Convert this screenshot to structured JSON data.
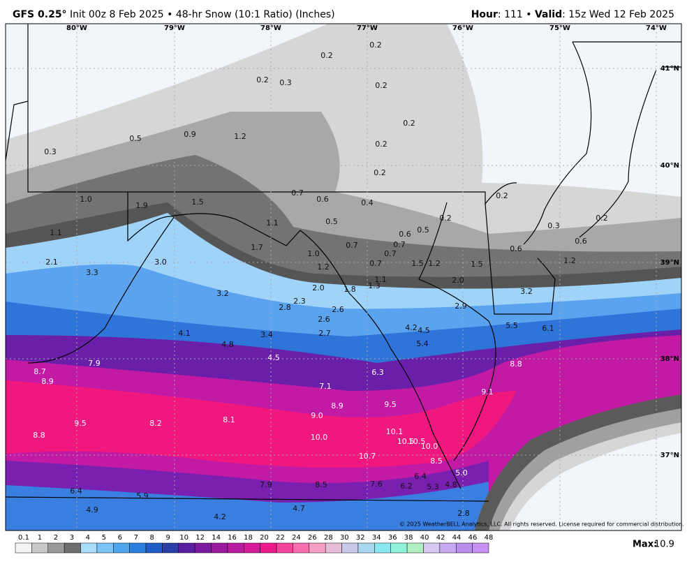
{
  "header": {
    "model": "GFS 0.25°",
    "description": "Init 00z 8 Feb 2025 • 48-hr Snow (10:1 Ratio) (Inches)",
    "hour_label": "Hour",
    "hour": ": 111 •",
    "valid_label": "Valid",
    "valid": ": 15z Wed 12 Feb 2025"
  },
  "map": {
    "longitudes": [
      "80°W",
      "79°W",
      "78°W",
      "77°W",
      "76°W",
      "75°W",
      "74°W"
    ],
    "latitudes": [
      "41°N",
      "40°N",
      "39°N",
      "38°N",
      "37°N"
    ],
    "values": [
      "0.2",
      "0.2",
      "0.2",
      "0.3",
      "0.2",
      "0.2",
      "0.2",
      "0.2",
      "0.3",
      "0.5",
      "0.9",
      "1.2",
      "1.0",
      "1.9",
      "1.5",
      "0.7",
      "0.6",
      "0.4",
      "0.2",
      "0.5",
      "1.1",
      "1.1",
      "0.6",
      "0.5",
      "0.2",
      "0.3",
      "0.2",
      "1.7",
      "0.7",
      "0.7",
      "0.7",
      "0.6",
      "0.6",
      "1.0",
      "2.1",
      "3.0",
      "1.2",
      "0.7",
      "1.5",
      "1.2",
      "1.5",
      "1.2",
      "3.3",
      "1.1",
      "2.0",
      "2.0",
      "1.8",
      "1.3",
      "3.2",
      "3.2",
      "2.3",
      "2.8",
      "2.6",
      "2.9",
      "2.6",
      "4.2",
      "4.5",
      "5.5",
      "6.1",
      "4.1",
      "2.7",
      "3.4",
      "4.8",
      "5.4",
      "4.5",
      "7.9",
      "8.8",
      "8.7",
      "6.3",
      "8.9",
      "7.1",
      "9.1",
      "8.9",
      "9.5",
      "9.0",
      "9.5",
      "8.2",
      "8.1",
      "10.1",
      "8.8",
      "10.0",
      "10.5",
      "10.5",
      "10.0",
      "10.7",
      "8.5",
      "5.0",
      "6.4",
      "7.9",
      "8.5",
      "7.6",
      "6.2",
      "5.3",
      "4.8",
      "6.4",
      "5.9",
      "4.9",
      "4.7",
      "4.2",
      "2.8"
    ]
  },
  "legend": {
    "ticks": [
      0.1,
      1,
      2,
      3,
      4,
      5,
      6,
      7,
      8,
      9,
      10,
      12,
      14,
      16,
      18,
      20,
      22,
      24,
      26,
      28,
      30,
      32,
      34,
      36,
      38,
      40,
      42,
      44,
      46,
      48
    ]
  },
  "max": {
    "label": "Max:",
    "value": "10.9"
  },
  "copyright": "© 2025 WeatherBELL Analytics, LLC. All rights reserved. License required for commercial distribution."
}
